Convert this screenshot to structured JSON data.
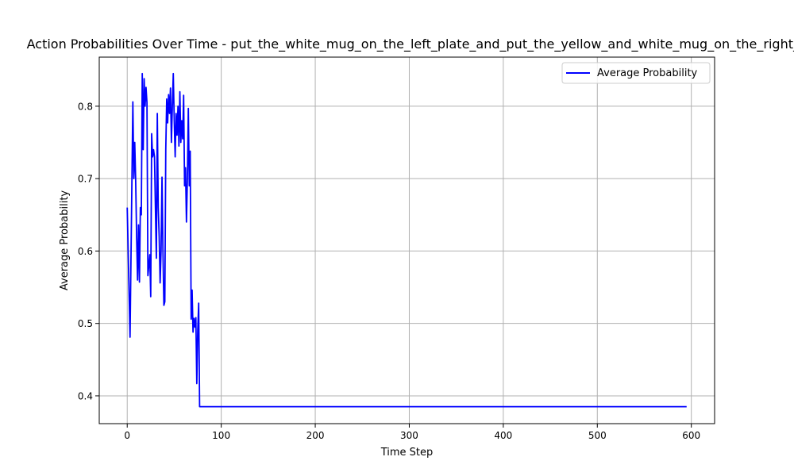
{
  "chart_data": {
    "type": "line",
    "title": "Action Probabilities Over Time - put_the_white_mug_on_the_left_plate_and_put_the_yellow_and_white_mug_on_the_right_plate",
    "xlabel": "Time Step",
    "ylabel": "Average Probability",
    "xlim": [
      -29.75,
      624.75
    ],
    "ylim": [
      0.3616,
      0.8678
    ],
    "xticks": [
      0,
      100,
      200,
      300,
      400,
      500,
      600
    ],
    "yticks": [
      0.4,
      0.5,
      0.6,
      0.7,
      0.8
    ],
    "ytick_labels": [
      "0.4",
      "0.5",
      "0.6",
      "0.7",
      "0.8"
    ],
    "grid": true,
    "legend": "top-right",
    "colors": {
      "line": "#0000ff",
      "grid": "#b0b0b0"
    },
    "series": [
      {
        "name": "Average Probability",
        "x": [
          0,
          3,
          6,
          7,
          8,
          9,
          10,
          11,
          12,
          13,
          14,
          15,
          16,
          17,
          18,
          19,
          20,
          21,
          22,
          23,
          24,
          25,
          26,
          27,
          28,
          29,
          30,
          31,
          32,
          33,
          34,
          35,
          36,
          37,
          38,
          39,
          40,
          41,
          42,
          43,
          44,
          45,
          46,
          47,
          48,
          49,
          50,
          51,
          52,
          53,
          54,
          55,
          56,
          57,
          58,
          59,
          60,
          61,
          62,
          63,
          64,
          65,
          66,
          67,
          68,
          69,
          70,
          71,
          72,
          73,
          74,
          75,
          76,
          77,
          78,
          79,
          80,
          81,
          82,
          83,
          84,
          85,
          86,
          87,
          88,
          89,
          90,
          91,
          92,
          93,
          94,
          95,
          96,
          97,
          98,
          99,
          100,
          101,
          595
        ],
        "values": [
          0.66,
          0.481,
          0.806,
          0.7,
          0.75,
          0.697,
          0.62,
          0.56,
          0.636,
          0.557,
          0.66,
          0.65,
          0.845,
          0.74,
          0.838,
          0.8,
          0.826,
          0.805,
          0.566,
          0.58,
          0.595,
          0.537,
          0.762,
          0.73,
          0.74,
          0.73,
          0.66,
          0.59,
          0.79,
          0.66,
          0.62,
          0.556,
          0.6,
          0.702,
          0.6,
          0.525,
          0.53,
          0.74,
          0.81,
          0.777,
          0.816,
          0.79,
          0.825,
          0.75,
          0.8,
          0.845,
          0.78,
          0.73,
          0.79,
          0.76,
          0.8,
          0.745,
          0.82,
          0.75,
          0.78,
          0.755,
          0.815,
          0.69,
          0.715,
          0.64,
          0.7,
          0.797,
          0.69,
          0.738,
          0.506,
          0.546,
          0.488,
          0.507,
          0.495,
          0.508,
          0.417,
          0.49,
          0.528,
          0.385,
          0.385,
          0.385,
          0.385,
          0.385,
          0.385,
          0.385,
          0.385,
          0.385,
          0.385,
          0.385,
          0.385,
          0.385,
          0.385,
          0.385,
          0.385,
          0.385,
          0.385,
          0.385,
          0.385,
          0.385,
          0.385,
          0.385,
          0.385,
          0.385,
          0.385
        ]
      }
    ]
  }
}
